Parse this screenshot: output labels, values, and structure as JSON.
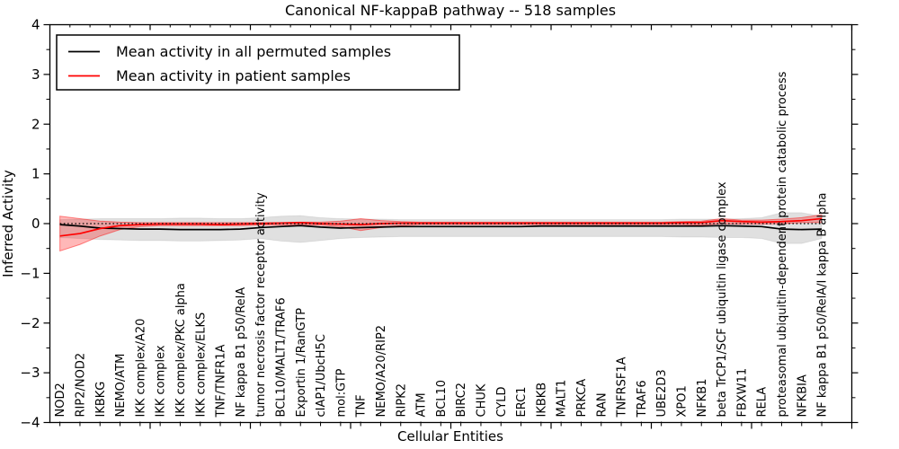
{
  "chart_data": {
    "type": "line",
    "title": "Canonical NF-kappaB pathway -- 518 samples",
    "xlabel": "Cellular Entities",
    "ylabel": "Inferred Activity",
    "ylim": [
      -4,
      4
    ],
    "xlim": [
      0,
      40
    ],
    "grid": false,
    "legend_position": "upper left",
    "yticks": [
      {
        "value": 4,
        "label": "4"
      },
      {
        "value": 3,
        "label": "3"
      },
      {
        "value": 2,
        "label": "2"
      },
      {
        "value": 1,
        "label": "1"
      },
      {
        "value": 0,
        "label": "0"
      },
      {
        "value": -1,
        "label": "−1"
      },
      {
        "value": -2,
        "label": "−2"
      },
      {
        "value": -3,
        "label": "−3"
      },
      {
        "value": -4,
        "label": "−4"
      }
    ],
    "categories": [
      "NOD2",
      "RIP2/NOD2",
      "IKBKG",
      "NEMO/ATM",
      "IKK complex/A20",
      "IKK complex",
      "IKK complex/PKC alpha",
      "IKK complex/ELKS",
      "TNF/TNFR1A",
      "NF kappa B1 p50/RelA",
      "tumor necrosis factor receptor activity",
      "BCL10/MALT1/TRAF6",
      "Exportin 1/RanGTP",
      "cIAP1/UbcH5C",
      "mol:GTP",
      "TNF",
      "NEMO/A20/RIP2",
      "RIPK2",
      "ATM",
      "BCL10",
      "BIRC2",
      "CHUK",
      "CYLD",
      "ERC1",
      "IKBKB",
      "MALT1",
      "PRKCA",
      "RAN",
      "TNFRSF1A",
      "TRAF6",
      "UBE2D3",
      "XPO1",
      "NFKB1",
      "beta TrCP1/SCF ubiquitin ligase complex",
      "FBXW11",
      "RELA",
      "proteasomal ubiquitin-dependent protein catabolic process",
      "NFKBIA",
      "NF kappa B1 p50/RelA/I kappa B alpha"
    ],
    "series": [
      {
        "name": "permuted_mean",
        "legend_label": "Mean activity in all permuted samples",
        "color": "#000000",
        "values": [
          -0.02,
          -0.05,
          -0.09,
          -0.1,
          -0.11,
          -0.11,
          -0.12,
          -0.12,
          -0.12,
          -0.11,
          -0.08,
          -0.06,
          -0.04,
          -0.07,
          -0.09,
          -0.08,
          -0.07,
          -0.06,
          -0.06,
          -0.06,
          -0.06,
          -0.06,
          -0.06,
          -0.06,
          -0.05,
          -0.05,
          -0.05,
          -0.05,
          -0.05,
          -0.05,
          -0.05,
          -0.05,
          -0.05,
          -0.04,
          -0.05,
          -0.06,
          -0.11,
          -0.12,
          -0.11
        ]
      },
      {
        "name": "patient_mean",
        "legend_label": "Mean activity in patient samples",
        "color": "#ff0000",
        "values": [
          -0.25,
          -0.2,
          -0.1,
          -0.04,
          -0.02,
          -0.01,
          -0.01,
          -0.01,
          -0.02,
          -0.01,
          0.0,
          0.01,
          0.02,
          0.0,
          -0.01,
          -0.02,
          0.0,
          0.01,
          0.01,
          0.01,
          0.01,
          0.01,
          0.01,
          0.01,
          0.01,
          0.01,
          0.01,
          0.01,
          0.01,
          0.01,
          0.01,
          0.02,
          0.02,
          0.06,
          0.04,
          0.03,
          0.04,
          0.06,
          0.1
        ]
      }
    ],
    "bands": [
      {
        "name": "permuted_range",
        "color": "#000000",
        "fill_opacity": 0.12,
        "edge_opacity": 0.08,
        "upper": [
          0.08,
          0.09,
          0.1,
          0.1,
          0.1,
          0.1,
          0.11,
          0.11,
          0.1,
          0.1,
          0.12,
          0.15,
          0.16,
          0.12,
          0.1,
          0.09,
          0.09,
          0.08,
          0.08,
          0.08,
          0.08,
          0.08,
          0.08,
          0.08,
          0.08,
          0.08,
          0.08,
          0.08,
          0.08,
          0.08,
          0.08,
          0.09,
          0.09,
          0.09,
          0.1,
          0.12,
          0.22,
          0.22,
          0.15
        ],
        "lower": [
          -0.28,
          -0.3,
          -0.32,
          -0.33,
          -0.34,
          -0.34,
          -0.35,
          -0.35,
          -0.34,
          -0.33,
          -0.3,
          -0.35,
          -0.38,
          -0.34,
          -0.3,
          -0.28,
          -0.27,
          -0.26,
          -0.26,
          -0.26,
          -0.26,
          -0.26,
          -0.26,
          -0.26,
          -0.26,
          -0.26,
          -0.26,
          -0.26,
          -0.26,
          -0.26,
          -0.26,
          -0.27,
          -0.27,
          -0.28,
          -0.28,
          -0.3,
          -0.4,
          -0.4,
          -0.3
        ]
      },
      {
        "name": "patient_range",
        "color": "#ff0000",
        "fill_opacity": 0.28,
        "edge_opacity": 0.45,
        "upper": [
          0.15,
          0.1,
          0.05,
          0.03,
          0.02,
          0.02,
          0.02,
          0.02,
          0.02,
          0.02,
          0.02,
          0.02,
          0.03,
          0.03,
          0.05,
          0.1,
          0.06,
          0.04,
          0.03,
          0.03,
          0.03,
          0.03,
          0.03,
          0.03,
          0.03,
          0.03,
          0.03,
          0.03,
          0.03,
          0.03,
          0.03,
          0.04,
          0.05,
          0.1,
          0.07,
          0.07,
          0.09,
          0.12,
          0.18
        ],
        "lower": [
          -0.55,
          -0.42,
          -0.25,
          -0.12,
          -0.06,
          -0.04,
          -0.04,
          -0.04,
          -0.04,
          -0.04,
          -0.03,
          -0.03,
          -0.02,
          -0.03,
          -0.06,
          -0.14,
          -0.08,
          -0.04,
          -0.02,
          -0.02,
          -0.02,
          -0.02,
          -0.02,
          -0.02,
          -0.02,
          -0.02,
          -0.02,
          -0.02,
          -0.02,
          -0.02,
          -0.02,
          -0.02,
          -0.03,
          0.0,
          -0.01,
          -0.01,
          0.0,
          0.02,
          0.02
        ]
      }
    ],
    "zero_line": {
      "style": "dotted",
      "color": "#000000",
      "value": 0
    }
  }
}
